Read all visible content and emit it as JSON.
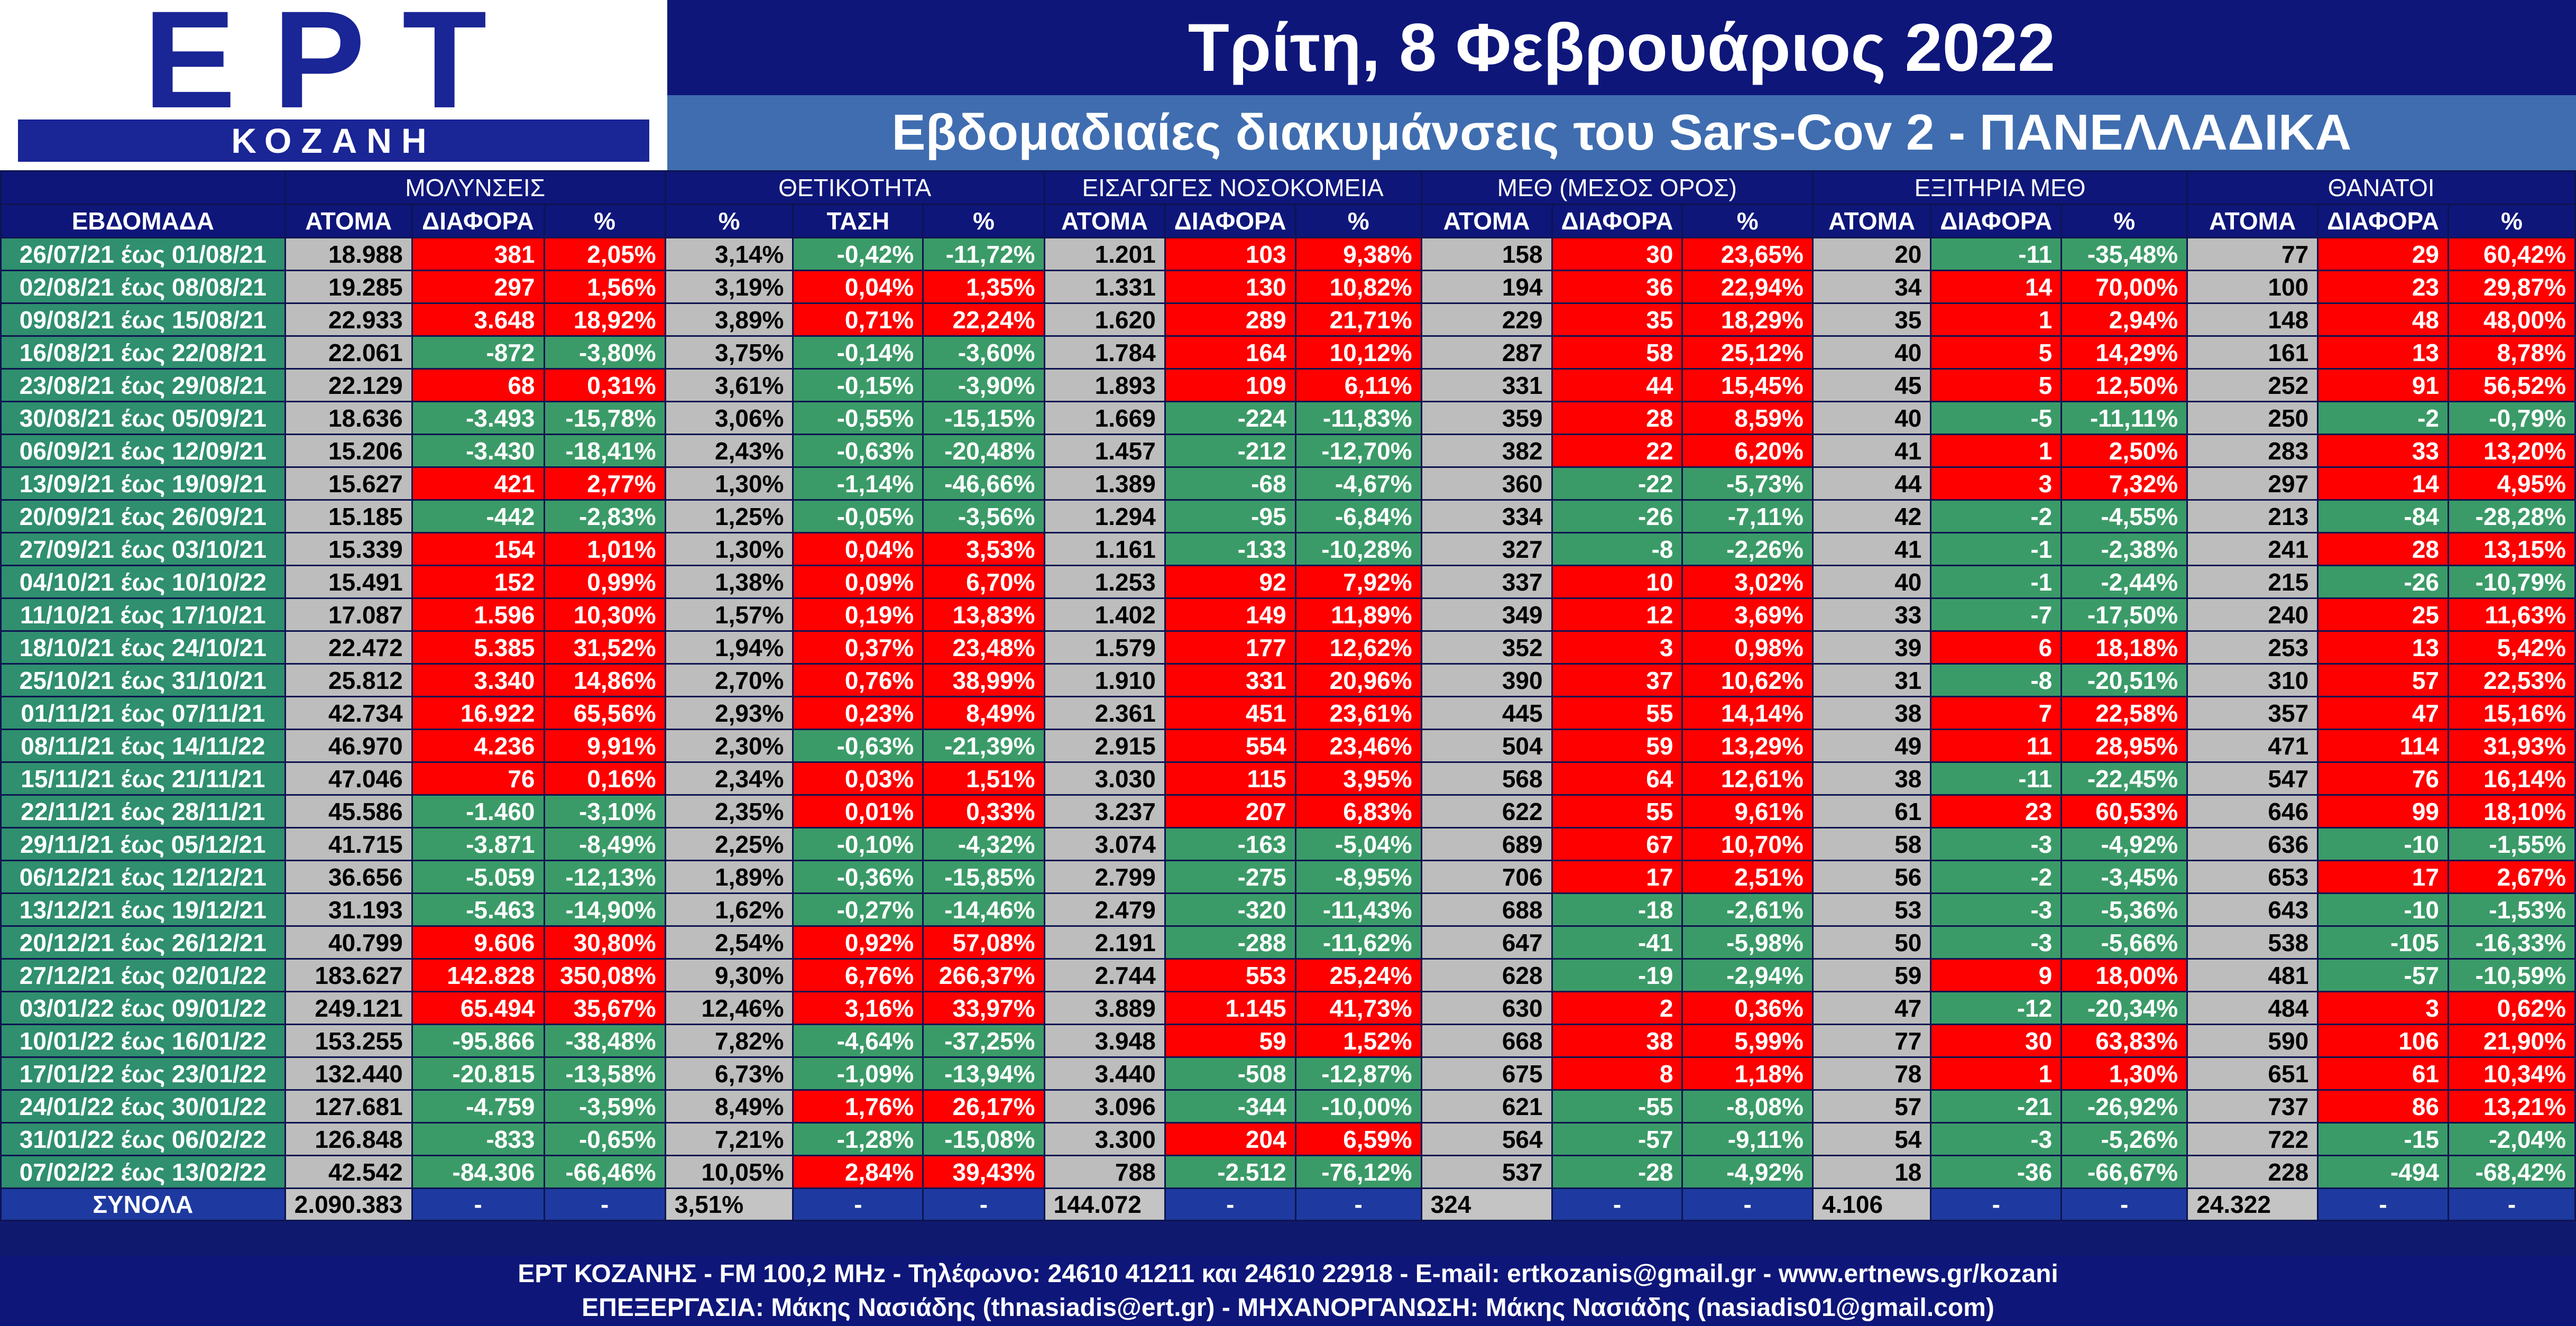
{
  "logo": {
    "wordmark": "ΕΡΤ",
    "region": "ΚΟΖΑΝΗ"
  },
  "header": {
    "date": "Τρίτη, 8 Φεβρουάριος 2022",
    "subtitle": "Εβδομαδιαίες διακυμάνσεις του Sars-Cov 2 - ΠΑΝΕΛΛΑΔΙΚΑ"
  },
  "table": {
    "groups": [
      "ΜΟΛΥΝΣΕΙΣ",
      "ΘΕΤΙΚΟΤΗΤΑ",
      "ΕΙΣΑΓΩΓΕΣ ΝΟΣΟΚΟΜΕΙΑ",
      "ΜΕΘ (ΜΕΣΟΣ ΟΡΟΣ)",
      "ΕΞΙΤΗΡΙΑ ΜΕΘ",
      "ΘΑΝΑΤΟΙ"
    ],
    "week_header": "ΕΒΔΟΜΑΔΑ",
    "columns": [
      "ΑΤΟΜΑ",
      "ΔΙΑΦΟΡΑ",
      "%",
      "%",
      "ΤΑΣΗ",
      "%",
      "ΑΤΟΜΑ",
      "ΔΙΑΦΟΡΑ",
      "%",
      "ΑΤΟΜΑ",
      "ΔΙΑΦΟΡΑ",
      "%",
      "ΑΤΟΜΑ",
      "ΔΙΑΦΟΡΑ",
      "%",
      "ΑΤΟΜΑ",
      "ΔΙΑΦΟΡΑ",
      "%"
    ],
    "colors": {
      "increase": "#ff0000",
      "decrease": "#3b9b68",
      "neutral": "#bdbdbd",
      "week": "#2f8f6e",
      "header": "#0e167a"
    },
    "rows": [
      {
        "week": "26/07/21 έως 01/08/21",
        "cells": [
          "18.988",
          "381",
          "2,05%",
          "3,14%",
          "-0,42%",
          "-11,72%",
          "1.201",
          "103",
          "9,38%",
          "158",
          "30",
          "23,65%",
          "20",
          "-11",
          "-35,48%",
          "77",
          "29",
          "60,42%"
        ]
      },
      {
        "week": "02/08/21 έως 08/08/21",
        "cells": [
          "19.285",
          "297",
          "1,56%",
          "3,19%",
          "0,04%",
          "1,35%",
          "1.331",
          "130",
          "10,82%",
          "194",
          "36",
          "22,94%",
          "34",
          "14",
          "70,00%",
          "100",
          "23",
          "29,87%"
        ]
      },
      {
        "week": "09/08/21 έως 15/08/21",
        "cells": [
          "22.933",
          "3.648",
          "18,92%",
          "3,89%",
          "0,71%",
          "22,24%",
          "1.620",
          "289",
          "21,71%",
          "229",
          "35",
          "18,29%",
          "35",
          "1",
          "2,94%",
          "148",
          "48",
          "48,00%"
        ]
      },
      {
        "week": "16/08/21 έως 22/08/21",
        "cells": [
          "22.061",
          "-872",
          "-3,80%",
          "3,75%",
          "-0,14%",
          "-3,60%",
          "1.784",
          "164",
          "10,12%",
          "287",
          "58",
          "25,12%",
          "40",
          "5",
          "14,29%",
          "161",
          "13",
          "8,78%"
        ]
      },
      {
        "week": "23/08/21 έως 29/08/21",
        "cells": [
          "22.129",
          "68",
          "0,31%",
          "3,61%",
          "-0,15%",
          "-3,90%",
          "1.893",
          "109",
          "6,11%",
          "331",
          "44",
          "15,45%",
          "45",
          "5",
          "12,50%",
          "252",
          "91",
          "56,52%"
        ]
      },
      {
        "week": "30/08/21 έως 05/09/21",
        "cells": [
          "18.636",
          "-3.493",
          "-15,78%",
          "3,06%",
          "-0,55%",
          "-15,15%",
          "1.669",
          "-224",
          "-11,83%",
          "359",
          "28",
          "8,59%",
          "40",
          "-5",
          "-11,11%",
          "250",
          "-2",
          "-0,79%"
        ]
      },
      {
        "week": "06/09/21 έως 12/09/21",
        "cells": [
          "15.206",
          "-3.430",
          "-18,41%",
          "2,43%",
          "-0,63%",
          "-20,48%",
          "1.457",
          "-212",
          "-12,70%",
          "382",
          "22",
          "6,20%",
          "41",
          "1",
          "2,50%",
          "283",
          "33",
          "13,20%"
        ]
      },
      {
        "week": "13/09/21 έως 19/09/21",
        "cells": [
          "15.627",
          "421",
          "2,77%",
          "1,30%",
          "-1,14%",
          "-46,66%",
          "1.389",
          "-68",
          "-4,67%",
          "360",
          "-22",
          "-5,73%",
          "44",
          "3",
          "7,32%",
          "297",
          "14",
          "4,95%"
        ]
      },
      {
        "week": "20/09/21 έως 26/09/21",
        "cells": [
          "15.185",
          "-442",
          "-2,83%",
          "1,25%",
          "-0,05%",
          "-3,56%",
          "1.294",
          "-95",
          "-6,84%",
          "334",
          "-26",
          "-7,11%",
          "42",
          "-2",
          "-4,55%",
          "213",
          "-84",
          "-28,28%"
        ]
      },
      {
        "week": "27/09/21 έως 03/10/21",
        "cells": [
          "15.339",
          "154",
          "1,01%",
          "1,30%",
          "0,04%",
          "3,53%",
          "1.161",
          "-133",
          "-10,28%",
          "327",
          "-8",
          "-2,26%",
          "41",
          "-1",
          "-2,38%",
          "241",
          "28",
          "13,15%"
        ]
      },
      {
        "week": "04/10/21 έως 10/10/22",
        "cells": [
          "15.491",
          "152",
          "0,99%",
          "1,38%",
          "0,09%",
          "6,70%",
          "1.253",
          "92",
          "7,92%",
          "337",
          "10",
          "3,02%",
          "40",
          "-1",
          "-2,44%",
          "215",
          "-26",
          "-10,79%"
        ]
      },
      {
        "week": "11/10/21 έως 17/10/21",
        "cells": [
          "17.087",
          "1.596",
          "10,30%",
          "1,57%",
          "0,19%",
          "13,83%",
          "1.402",
          "149",
          "11,89%",
          "349",
          "12",
          "3,69%",
          "33",
          "-7",
          "-17,50%",
          "240",
          "25",
          "11,63%"
        ]
      },
      {
        "week": "18/10/21 έως 24/10/21",
        "cells": [
          "22.472",
          "5.385",
          "31,52%",
          "1,94%",
          "0,37%",
          "23,48%",
          "1.579",
          "177",
          "12,62%",
          "352",
          "3",
          "0,98%",
          "39",
          "6",
          "18,18%",
          "253",
          "13",
          "5,42%"
        ]
      },
      {
        "week": "25/10/21 έως 31/10/21",
        "cells": [
          "25.812",
          "3.340",
          "14,86%",
          "2,70%",
          "0,76%",
          "38,99%",
          "1.910",
          "331",
          "20,96%",
          "390",
          "37",
          "10,62%",
          "31",
          "-8",
          "-20,51%",
          "310",
          "57",
          "22,53%"
        ]
      },
      {
        "week": "01/11/21 έως 07/11/21",
        "cells": [
          "42.734",
          "16.922",
          "65,56%",
          "2,93%",
          "0,23%",
          "8,49%",
          "2.361",
          "451",
          "23,61%",
          "445",
          "55",
          "14,14%",
          "38",
          "7",
          "22,58%",
          "357",
          "47",
          "15,16%"
        ]
      },
      {
        "week": "08/11/21 έως 14/11/22",
        "cells": [
          "46.970",
          "4.236",
          "9,91%",
          "2,30%",
          "-0,63%",
          "-21,39%",
          "2.915",
          "554",
          "23,46%",
          "504",
          "59",
          "13,29%",
          "49",
          "11",
          "28,95%",
          "471",
          "114",
          "31,93%"
        ]
      },
      {
        "week": "15/11/21 έως 21/11/21",
        "cells": [
          "47.046",
          "76",
          "0,16%",
          "2,34%",
          "0,03%",
          "1,51%",
          "3.030",
          "115",
          "3,95%",
          "568",
          "64",
          "12,61%",
          "38",
          "-11",
          "-22,45%",
          "547",
          "76",
          "16,14%"
        ]
      },
      {
        "week": "22/11/21 έως 28/11/21",
        "cells": [
          "45.586",
          "-1.460",
          "-3,10%",
          "2,35%",
          "0,01%",
          "0,33%",
          "3.237",
          "207",
          "6,83%",
          "622",
          "55",
          "9,61%",
          "61",
          "23",
          "60,53%",
          "646",
          "99",
          "18,10%"
        ]
      },
      {
        "week": "29/11/21 έως 05/12/21",
        "cells": [
          "41.715",
          "-3.871",
          "-8,49%",
          "2,25%",
          "-0,10%",
          "-4,32%",
          "3.074",
          "-163",
          "-5,04%",
          "689",
          "67",
          "10,70%",
          "58",
          "-3",
          "-4,92%",
          "636",
          "-10",
          "-1,55%"
        ]
      },
      {
        "week": "06/12/21 έως 12/12/21",
        "cells": [
          "36.656",
          "-5.059",
          "-12,13%",
          "1,89%",
          "-0,36%",
          "-15,85%",
          "2.799",
          "-275",
          "-8,95%",
          "706",
          "17",
          "2,51%",
          "56",
          "-2",
          "-3,45%",
          "653",
          "17",
          "2,67%"
        ]
      },
      {
        "week": "13/12/21 έως 19/12/21",
        "cells": [
          "31.193",
          "-5.463",
          "-14,90%",
          "1,62%",
          "-0,27%",
          "-14,46%",
          "2.479",
          "-320",
          "-11,43%",
          "688",
          "-18",
          "-2,61%",
          "53",
          "-3",
          "-5,36%",
          "643",
          "-10",
          "-1,53%"
        ]
      },
      {
        "week": "20/12/21 έως 26/12/21",
        "cells": [
          "40.799",
          "9.606",
          "30,80%",
          "2,54%",
          "0,92%",
          "57,08%",
          "2.191",
          "-288",
          "-11,62%",
          "647",
          "-41",
          "-5,98%",
          "50",
          "-3",
          "-5,66%",
          "538",
          "-105",
          "-16,33%"
        ]
      },
      {
        "week": "27/12/21 έως 02/01/22",
        "cells": [
          "183.627",
          "142.828",
          "350,08%",
          "9,30%",
          "6,76%",
          "266,37%",
          "2.744",
          "553",
          "25,24%",
          "628",
          "-19",
          "-2,94%",
          "59",
          "9",
          "18,00%",
          "481",
          "-57",
          "-10,59%"
        ]
      },
      {
        "week": "03/01/22 έως 09/01/22",
        "cells": [
          "249.121",
          "65.494",
          "35,67%",
          "12,46%",
          "3,16%",
          "33,97%",
          "3.889",
          "1.145",
          "41,73%",
          "630",
          "2",
          "0,36%",
          "47",
          "-12",
          "-20,34%",
          "484",
          "3",
          "0,62%"
        ]
      },
      {
        "week": "10/01/22 έως 16/01/22",
        "cells": [
          "153.255",
          "-95.866",
          "-38,48%",
          "7,82%",
          "-4,64%",
          "-37,25%",
          "3.948",
          "59",
          "1,52%",
          "668",
          "38",
          "5,99%",
          "77",
          "30",
          "63,83%",
          "590",
          "106",
          "21,90%"
        ]
      },
      {
        "week": "17/01/22 έως 23/01/22",
        "cells": [
          "132.440",
          "-20.815",
          "-13,58%",
          "6,73%",
          "-1,09%",
          "-13,94%",
          "3.440",
          "-508",
          "-12,87%",
          "675",
          "8",
          "1,18%",
          "78",
          "1",
          "1,30%",
          "651",
          "61",
          "10,34%"
        ]
      },
      {
        "week": "24/01/22 έως 30/01/22",
        "cells": [
          "127.681",
          "-4.759",
          "-3,59%",
          "8,49%",
          "1,76%",
          "26,17%",
          "3.096",
          "-344",
          "-10,00%",
          "621",
          "-55",
          "-8,08%",
          "57",
          "-21",
          "-26,92%",
          "737",
          "86",
          "13,21%"
        ]
      },
      {
        "week": "31/01/22 έως 06/02/22",
        "cells": [
          "126.848",
          "-833",
          "-0,65%",
          "7,21%",
          "-1,28%",
          "-15,08%",
          "3.300",
          "204",
          "6,59%",
          "564",
          "-57",
          "-9,11%",
          "54",
          "-3",
          "-5,26%",
          "722",
          "-15",
          "-2,04%"
        ]
      },
      {
        "week": "07/02/22 έως 13/02/22",
        "cells": [
          "42.542",
          "-84.306",
          "-66,46%",
          "10,05%",
          "2,84%",
          "39,43%",
          "788",
          "-2.512",
          "-76,12%",
          "537",
          "-28",
          "-4,92%",
          "18",
          "-36",
          "-66,67%",
          "228",
          "-494",
          "-68,42%"
        ]
      }
    ],
    "totals": {
      "label": "ΣΥΝΟΛΑ",
      "cells": [
        "2.090.383",
        "-",
        "-",
        "3,51%",
        "-",
        "-",
        "144.072",
        "-",
        "-",
        "324",
        "-",
        "-",
        "4.106",
        "-",
        "-",
        "24.322",
        "-",
        "-"
      ]
    }
  },
  "footer": {
    "line1": "ΕΡΤ ΚΟΖΑΝΗΣ - FM 100,2 MHz - Τηλέφωνο:  24610 41211 και 24610 22918 - E-mail: ertkozanis@gmail.gr - www.ertnews.gr/kozani",
    "line2": "ΕΠΕΞΕΡΓΑΣΙΑ: Μάκης Νασιάδης (thnasiadis@ert.gr) - ΜΗΧΑΝΟΡΓΑΝΩΣΗ: Μάκης Νασιάδης (nasiadis01@gmail.com)"
  }
}
